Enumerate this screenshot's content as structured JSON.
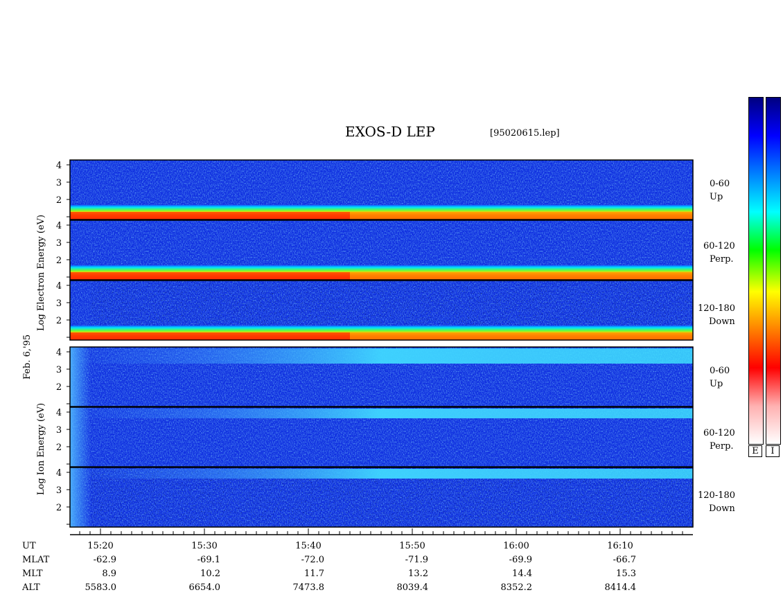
{
  "header": {
    "title": "EXOS-D LEP",
    "file": "[95020615.lep]"
  },
  "labels": {
    "date": "Feb. 6,'95",
    "electron_axis": "Log  Electron  Energy (eV)",
    "ion_axis": "Log  Ion  Energy (eV)"
  },
  "panels": {
    "electron": [
      {
        "range": "0-60",
        "dir": "Up"
      },
      {
        "range": "60-120",
        "dir": "Perp."
      },
      {
        "range": "120-180",
        "dir": "Down"
      }
    ],
    "ion": [
      {
        "range": "0-60",
        "dir": "Up"
      },
      {
        "range": "60-120",
        "dir": "Perp."
      },
      {
        "range": "120-180",
        "dir": "Down"
      }
    ]
  },
  "colorbars": {
    "electron_label": "E",
    "ion_label": "I"
  },
  "table": {
    "rows": [
      {
        "label": "UT",
        "values": [
          "15:20",
          "15:30",
          "15:40",
          "15:50",
          "16:00",
          "16:10"
        ]
      },
      {
        "label": "MLAT",
        "values": [
          "-62.9",
          "-69.1",
          "-72.0",
          "-71.9",
          "-69.9",
          "-66.7"
        ]
      },
      {
        "label": "MLT",
        "values": [
          "8.9",
          "10.2",
          "11.7",
          "13.2",
          "14.4",
          "15.3"
        ]
      },
      {
        "label": "ALT",
        "values": [
          "5583.0",
          "6654.0",
          "7473.8",
          "8039.4",
          "8352.2",
          "8414.4"
        ]
      }
    ]
  },
  "chart_data": {
    "type": "heatmap",
    "title": "EXOS-D LEP",
    "x": [
      "15:20",
      "15:30",
      "15:40",
      "15:50",
      "16:00",
      "16:10"
    ],
    "xlabel": "UT",
    "ylabel_electron": "Log Electron Energy (eV)",
    "ylabel_ion": "Log Ion Energy (eV)",
    "y_ticks": [
      "1",
      "2",
      "3",
      "4"
    ],
    "ylim": [
      1,
      4
    ],
    "colormap": [
      "#ffffff",
      "#ffb0b0",
      "#ff0000",
      "#ff8000",
      "#ffff00",
      "#00ff00",
      "#00ffff",
      "#0080ff",
      "#0000ff",
      "#000080"
    ]
  }
}
